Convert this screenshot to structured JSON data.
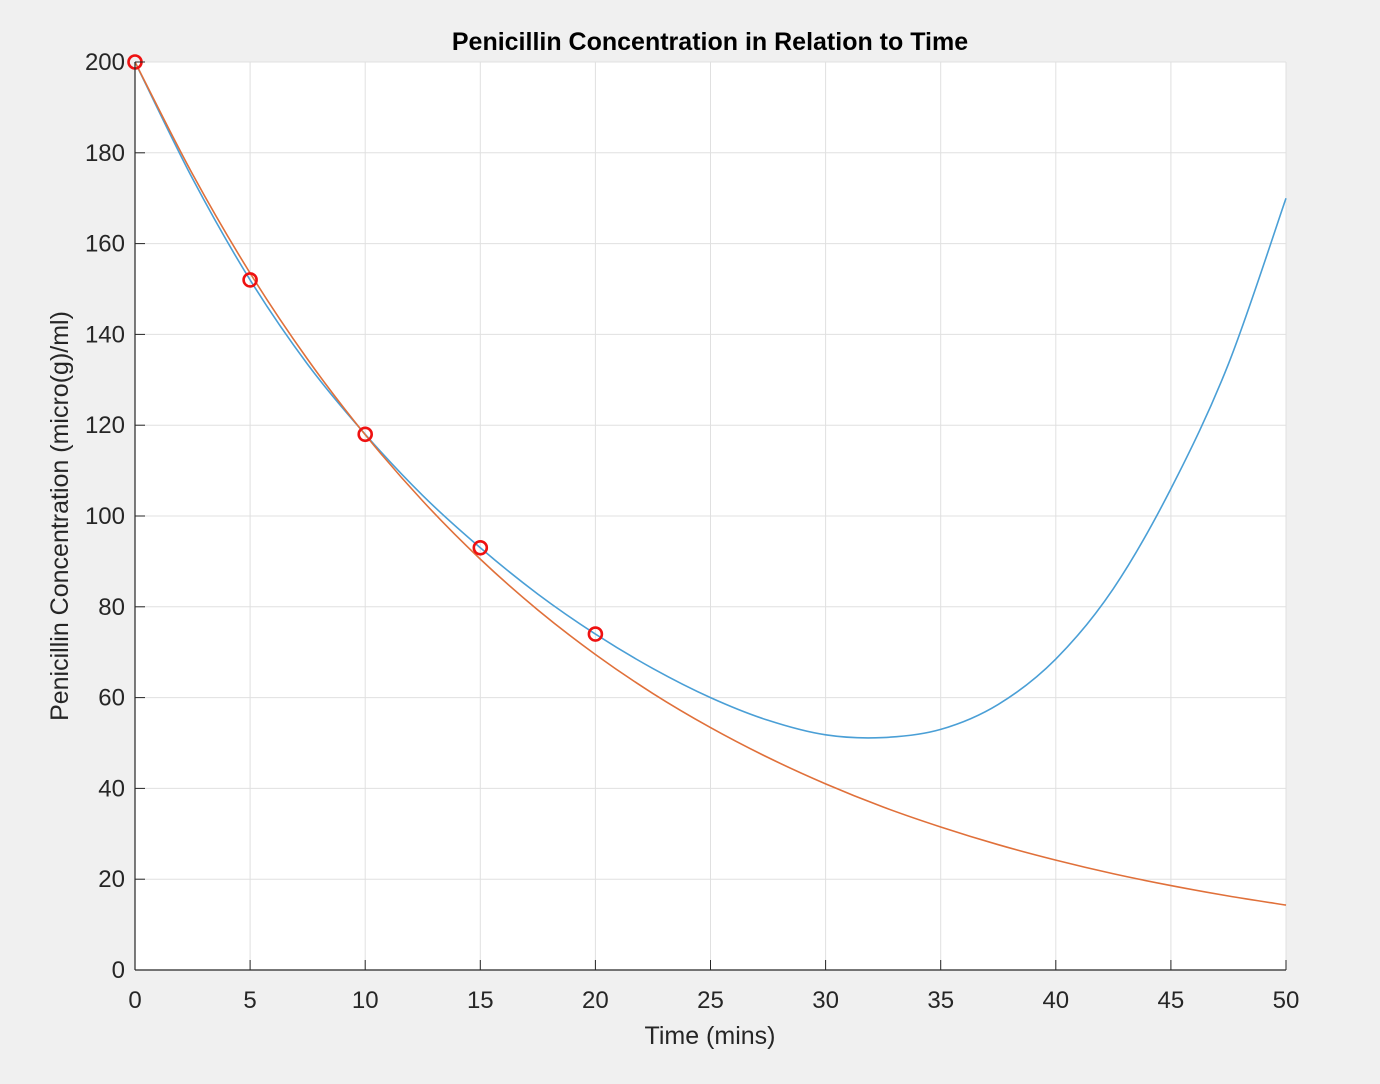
{
  "chart_data": {
    "type": "line",
    "title": "Penicillin Concentration in Relation to Time",
    "xlabel": "Time (mins)",
    "ylabel": "Penicillin Concentration (micro(g)/ml)",
    "xlim": [
      0,
      50
    ],
    "ylim": [
      0,
      200
    ],
    "xticks": [
      0,
      5,
      10,
      15,
      20,
      25,
      30,
      35,
      40,
      45,
      50
    ],
    "yticks": [
      0,
      20,
      40,
      60,
      80,
      100,
      120,
      140,
      160,
      180,
      200
    ],
    "grid": true,
    "legend": "none",
    "colors": {
      "series_blue": "#4a9fd6",
      "series_orange": "#e0703a",
      "markers": "#ee1111",
      "axes": "#262626",
      "grid": "#e0e0e0",
      "figure_bg": "#f0f0f0",
      "axes_bg": "#ffffff"
    },
    "markers": {
      "style": "circle",
      "x": [
        0,
        5,
        10,
        15,
        20
      ],
      "y": [
        200,
        152,
        118,
        93,
        74
      ]
    },
    "series": [
      {
        "color": "#4a9fd6",
        "x": [
          0,
          2.5,
          5,
          7.5,
          10,
          12.5,
          15,
          17.5,
          20,
          22.5,
          25,
          27.5,
          30,
          32.5,
          35,
          37.5,
          40,
          42.5,
          45,
          47.5,
          50
        ],
        "y": [
          200,
          174.3,
          152,
          133.4,
          118,
          104.5,
          93,
          82.8,
          74,
          66.4,
          60,
          55,
          51.8,
          51.2,
          53,
          58.5,
          68.5,
          84,
          106,
          133.5,
          170
        ]
      },
      {
        "color": "#e0703a",
        "x": [
          0,
          2.5,
          5,
          7.5,
          10,
          12.5,
          15,
          17.5,
          20,
          22.5,
          25,
          27.5,
          30,
          32.5,
          35,
          37.5,
          40,
          42.5,
          45,
          47.5,
          50
        ],
        "y": [
          200,
          175.3,
          153.5,
          134.5,
          117.9,
          103.3,
          90.5,
          79.3,
          69.5,
          60.9,
          53.4,
          46.8,
          41,
          35.9,
          31.5,
          27.6,
          24.2,
          21.2,
          18.6,
          16.3,
          14.3
        ]
      }
    ]
  }
}
